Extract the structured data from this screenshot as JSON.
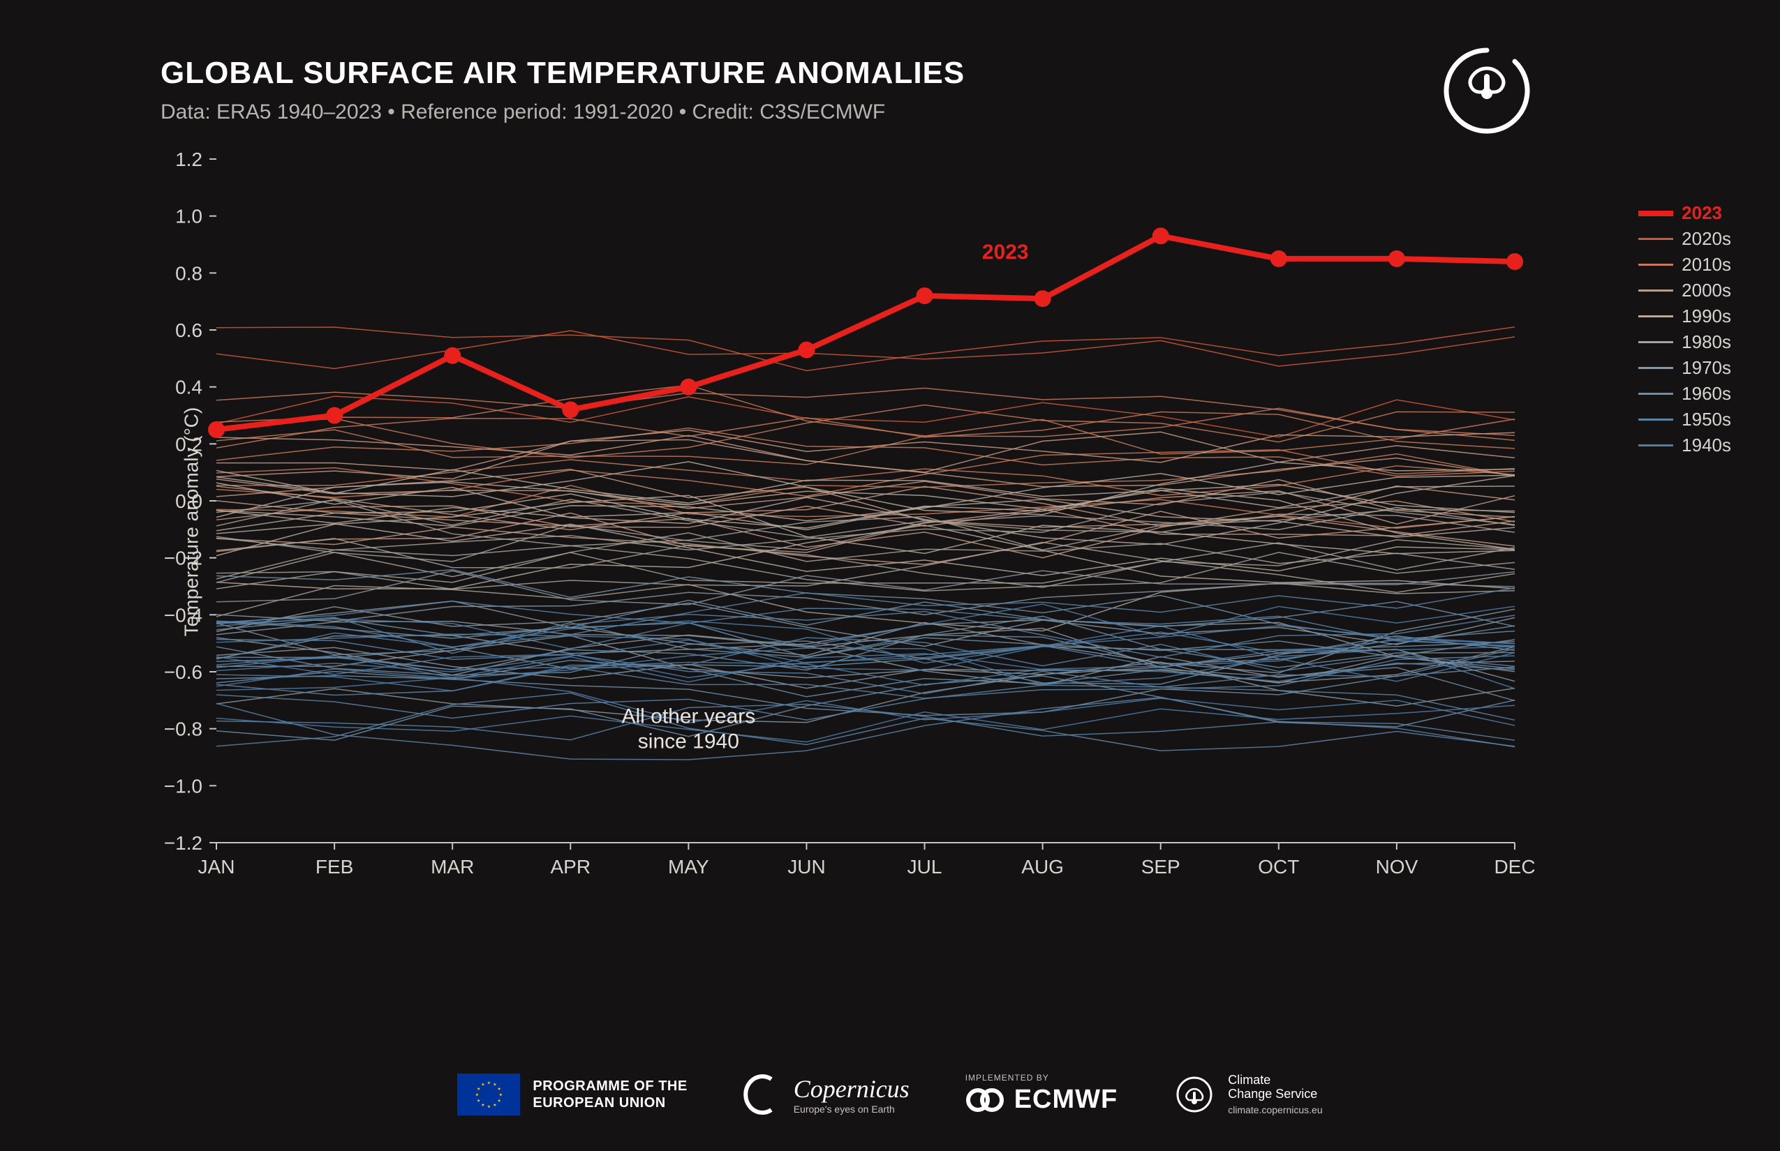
{
  "title": "GLOBAL SURFACE AIR TEMPERATURE ANOMALIES",
  "subtitle": "Data: ERA5 1940–2023 • Reference period: 1991-2020 • Credit: C3S/ECMWF",
  "ylabel": "Temperature anomaly (°C)",
  "chart": {
    "type": "line",
    "background_color": "#141212",
    "text_color": "#d8d4d0",
    "axis_color": "#c8c4c0",
    "months": [
      "JAN",
      "FEB",
      "MAR",
      "APR",
      "MAY",
      "JUN",
      "JUL",
      "AUG",
      "SEP",
      "OCT",
      "NOV",
      "DEC"
    ],
    "ylim": [
      -1.2,
      1.2
    ],
    "ytick_step": 0.2,
    "yticks": [
      "1.2",
      "1.0",
      "0.8",
      "0.6",
      "0.4",
      "0.2",
      "0.0",
      "−0.2",
      "−0.4",
      "−0.6",
      "−0.8",
      "−1.0",
      "−1.2"
    ],
    "tick_fontsize": 28,
    "line2023": {
      "label": "2023",
      "color": "#e8211c",
      "width": 8,
      "marker_radius": 12,
      "values": [
        0.25,
        0.3,
        0.51,
        0.32,
        0.4,
        0.53,
        0.72,
        0.71,
        0.93,
        0.85,
        0.85,
        0.84
      ]
    },
    "decade_colors": {
      "2020s": "#cc5a3a",
      "2010s": "#c77a5a",
      "2000s": "#c49a85",
      "1990s": "#b8ab9e",
      "1980s": "#a8a29a",
      "1970s": "#8a97a0",
      "1960s": "#6f8ea5",
      "1950s": "#5a84a8",
      "1940s": "#4f7ea8"
    },
    "background_line_width": 1.5,
    "annotation_2023": {
      "text": "2023",
      "month_index": 7,
      "y_value": 0.85
    },
    "annotation_other": {
      "line1": "All other years",
      "line2": "since 1940",
      "month_index": 4,
      "y_value": -0.78
    },
    "decade_means": {
      "2020s": 0.35,
      "2010s": 0.2,
      "2000s": 0.05,
      "1990s": -0.1,
      "1980s": -0.25,
      "1970s": -0.45,
      "1960s": -0.55,
      "1950s": -0.6,
      "1940s": -0.6
    },
    "decade_spread": 0.2,
    "years_per_decade": {
      "2020s": 3,
      "2010s": 10,
      "2000s": 10,
      "1990s": 10,
      "1980s": 10,
      "1970s": 10,
      "1960s": 10,
      "1950s": 10,
      "1940s": 10
    }
  },
  "legend": [
    {
      "label": "2023",
      "color": "#e8211c",
      "width": 8,
      "bold": true
    },
    {
      "label": "2020s",
      "color": "#cc5a3a",
      "width": 3
    },
    {
      "label": "2010s",
      "color": "#c77a5a",
      "width": 3
    },
    {
      "label": "2000s",
      "color": "#c49a85",
      "width": 3
    },
    {
      "label": "1990s",
      "color": "#b8ab9e",
      "width": 3
    },
    {
      "label": "1980s",
      "color": "#a8a29a",
      "width": 3
    },
    {
      "label": "1970s",
      "color": "#8a97a0",
      "width": 3
    },
    {
      "label": "1960s",
      "color": "#6f8ea5",
      "width": 3
    },
    {
      "label": "1950s",
      "color": "#5a84a8",
      "width": 3
    },
    {
      "label": "1940s",
      "color": "#4f7ea8",
      "width": 3
    }
  ],
  "footer": {
    "eu_text1": "PROGRAMME OF THE",
    "eu_text2": "EUROPEAN UNION",
    "copernicus_name": "Copernicus",
    "copernicus_tag": "Europe's eyes on Earth",
    "implemented_by": "IMPLEMENTED BY",
    "ecmwf": "ECMWF",
    "ccs_name": "Climate",
    "ccs_name2": "Change Service",
    "ccs_url": "climate.copernicus.eu"
  }
}
